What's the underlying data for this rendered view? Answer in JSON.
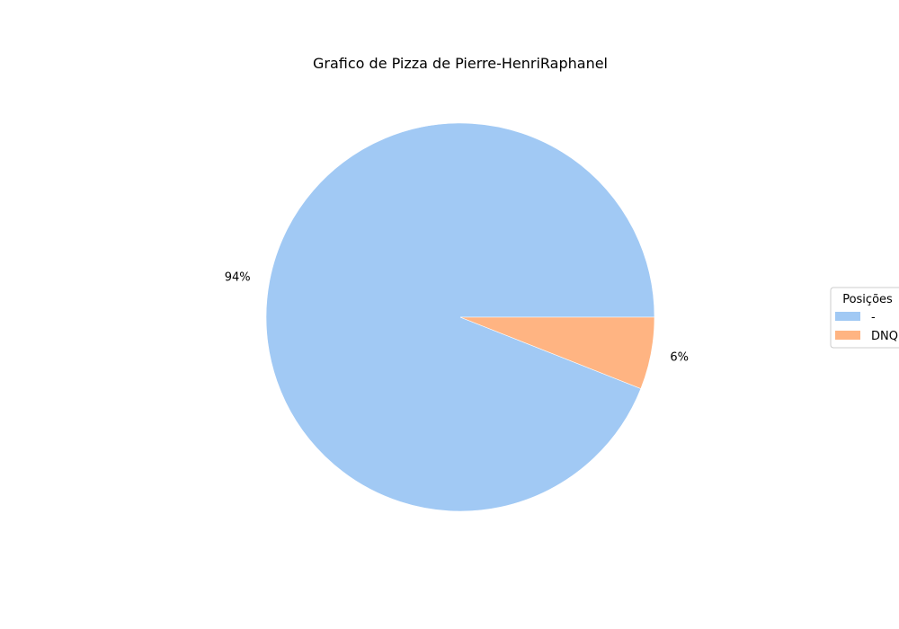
{
  "chart_data": {
    "type": "pie",
    "title": "Grafico de Pizza de Pierre-HenriRaphanel",
    "categories": [
      "-",
      "DNQ"
    ],
    "values": [
      94,
      6
    ],
    "labels": [
      "94%",
      "6%"
    ],
    "colors": [
      "#a1c9f4",
      "#ffb482"
    ],
    "legend": {
      "title": "Posições",
      "placement": "center-right"
    }
  }
}
